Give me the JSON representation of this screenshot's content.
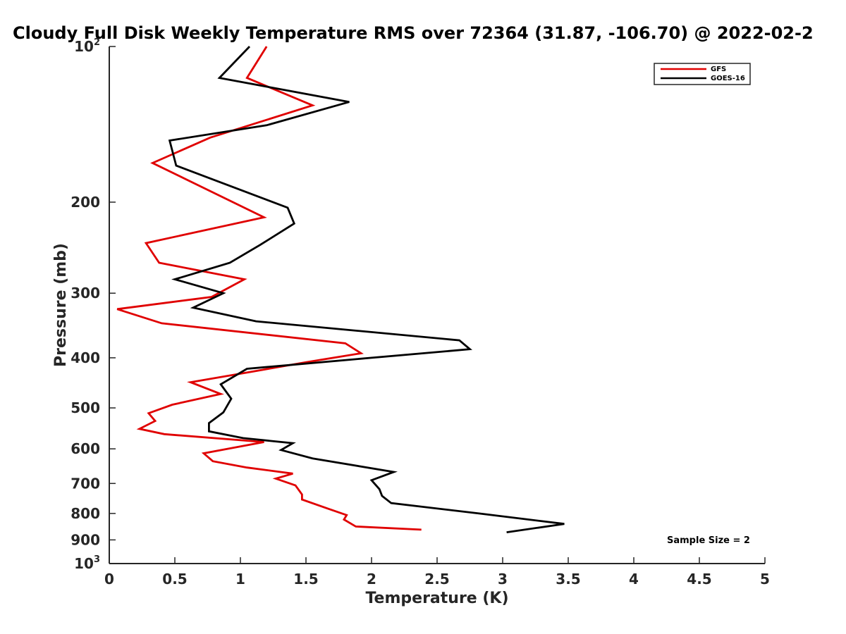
{
  "chart_data": {
    "type": "line",
    "title": "Cloudy Full Disk Weekly Temperature RMS over 72364 (31.87, -106.70) @ 2022-02-2",
    "xlabel": "Temperature (K)",
    "ylabel": "Pressure (mb)",
    "xlim": [
      0,
      5
    ],
    "ylim": [
      100,
      1000
    ],
    "y_scale": "log",
    "y_reversed": true,
    "x_ticks": [
      "0",
      "0.5",
      "1",
      "1.5",
      "2",
      "2.5",
      "3",
      "3.5",
      "4",
      "4.5",
      "5"
    ],
    "y_ticks": [
      {
        "value": 100,
        "base": "10",
        "exp": "2"
      },
      {
        "value": 200,
        "label": "200"
      },
      {
        "value": 300,
        "label": "300"
      },
      {
        "value": 400,
        "label": "400"
      },
      {
        "value": 500,
        "label": "500"
      },
      {
        "value": 600,
        "label": "600"
      },
      {
        "value": 700,
        "label": "700"
      },
      {
        "value": 800,
        "label": "800"
      },
      {
        "value": 900,
        "label": "900"
      },
      {
        "value": 1000,
        "base": "10",
        "exp": "3"
      }
    ],
    "grid": false,
    "legend_position": "top-right",
    "annotation": "Sample Size = 2",
    "series": [
      {
        "name": "GFS",
        "color": "#e00000",
        "points": [
          [
            1.2,
            100
          ],
          [
            1.05,
            115
          ],
          [
            1.55,
            130
          ],
          [
            0.77,
            150
          ],
          [
            0.33,
            168
          ],
          [
            1.18,
            214
          ],
          [
            0.28,
            240
          ],
          [
            0.38,
            262
          ],
          [
            1.03,
            282
          ],
          [
            0.78,
            305
          ],
          [
            0.06,
            322
          ],
          [
            0.4,
            343
          ],
          [
            1.8,
            375
          ],
          [
            1.92,
            392
          ],
          [
            1.5,
            408
          ],
          [
            1.1,
            425
          ],
          [
            0.62,
            446
          ],
          [
            0.85,
            470
          ],
          [
            0.48,
            493
          ],
          [
            0.3,
            512
          ],
          [
            0.35,
            530
          ],
          [
            0.23,
            549
          ],
          [
            0.42,
            562
          ],
          [
            1.18,
            582
          ],
          [
            0.72,
            612
          ],
          [
            0.79,
            634
          ],
          [
            1.05,
            652
          ],
          [
            1.4,
            670
          ],
          [
            1.27,
            685
          ],
          [
            1.42,
            706
          ],
          [
            1.47,
            735
          ],
          [
            1.47,
            752
          ],
          [
            1.66,
            782
          ],
          [
            1.81,
            806
          ],
          [
            1.79,
            822
          ],
          [
            1.88,
            848
          ],
          [
            2.38,
            860
          ]
        ]
      },
      {
        "name": "GOES-16",
        "color": "#000000",
        "points": [
          [
            1.07,
            100
          ],
          [
            0.84,
            115
          ],
          [
            1.83,
            128
          ],
          [
            1.2,
            142
          ],
          [
            0.46,
            152
          ],
          [
            0.51,
            170
          ],
          [
            1.36,
            205
          ],
          [
            1.41,
            220
          ],
          [
            1.15,
            242
          ],
          [
            0.92,
            262
          ],
          [
            0.5,
            282
          ],
          [
            0.87,
            300
          ],
          [
            0.64,
            320
          ],
          [
            1.12,
            340
          ],
          [
            2.67,
            370
          ],
          [
            2.75,
            385
          ],
          [
            2.0,
            400
          ],
          [
            1.05,
            420
          ],
          [
            0.85,
            450
          ],
          [
            0.93,
            480
          ],
          [
            0.87,
            510
          ],
          [
            0.76,
            535
          ],
          [
            0.76,
            555
          ],
          [
            1.02,
            572
          ],
          [
            1.4,
            585
          ],
          [
            1.31,
            603
          ],
          [
            1.55,
            626
          ],
          [
            2.17,
            665
          ],
          [
            2.0,
            690
          ],
          [
            2.06,
            718
          ],
          [
            2.08,
            740
          ],
          [
            2.15,
            764
          ],
          [
            2.82,
            800
          ],
          [
            3.47,
            838
          ],
          [
            3.03,
            870
          ]
        ]
      }
    ]
  }
}
